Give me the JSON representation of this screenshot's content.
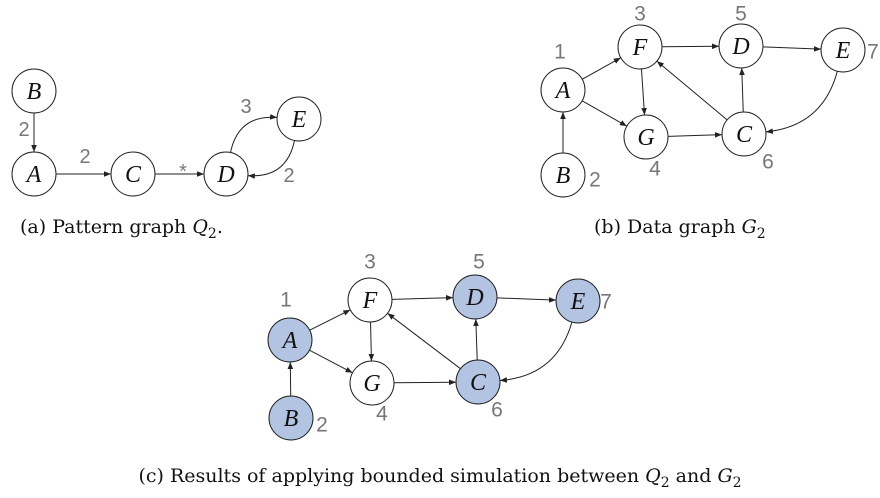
{
  "highlight_color": "#b3c3e2",
  "graphs": [
    {
      "nodes": [
        {
          "label": "B"
        },
        {
          "label": "A"
        },
        {
          "label": "C"
        },
        {
          "label": "D"
        },
        {
          "label": "E"
        }
      ],
      "edge_labels": [
        "2",
        "2",
        "*",
        "3",
        "2"
      ],
      "caption": [
        "(a) Pattern graph ",
        "Q",
        "2",
        "."
      ]
    },
    {
      "nodes": [
        {
          "label": "A",
          "number": 1
        },
        {
          "label": "F",
          "number": 3
        },
        {
          "label": "D",
          "number": 5
        },
        {
          "label": "E",
          "number": 7
        },
        {
          "label": "G",
          "number": 4
        },
        {
          "label": "C",
          "number": 6
        },
        {
          "label": "B",
          "number": 2
        }
      ],
      "caption": [
        "(b) Data graph ",
        "G",
        "2",
        ""
      ]
    },
    {
      "nodes": [
        {
          "label": "A",
          "number": 1,
          "highlighted": true
        },
        {
          "label": "F",
          "number": 3,
          "highlighted": false
        },
        {
          "label": "D",
          "number": 5,
          "highlighted": true
        },
        {
          "label": "E",
          "number": 7,
          "highlighted": true
        },
        {
          "label": "G",
          "number": 4,
          "highlighted": false
        },
        {
          "label": "C",
          "number": 6,
          "highlighted": true
        },
        {
          "label": "B",
          "number": 2,
          "highlighted": true
        }
      ],
      "caption": [
        "(c) Results of applying bounded simulation between ",
        "Q",
        "2",
        " and ",
        "G",
        "2"
      ]
    }
  ]
}
